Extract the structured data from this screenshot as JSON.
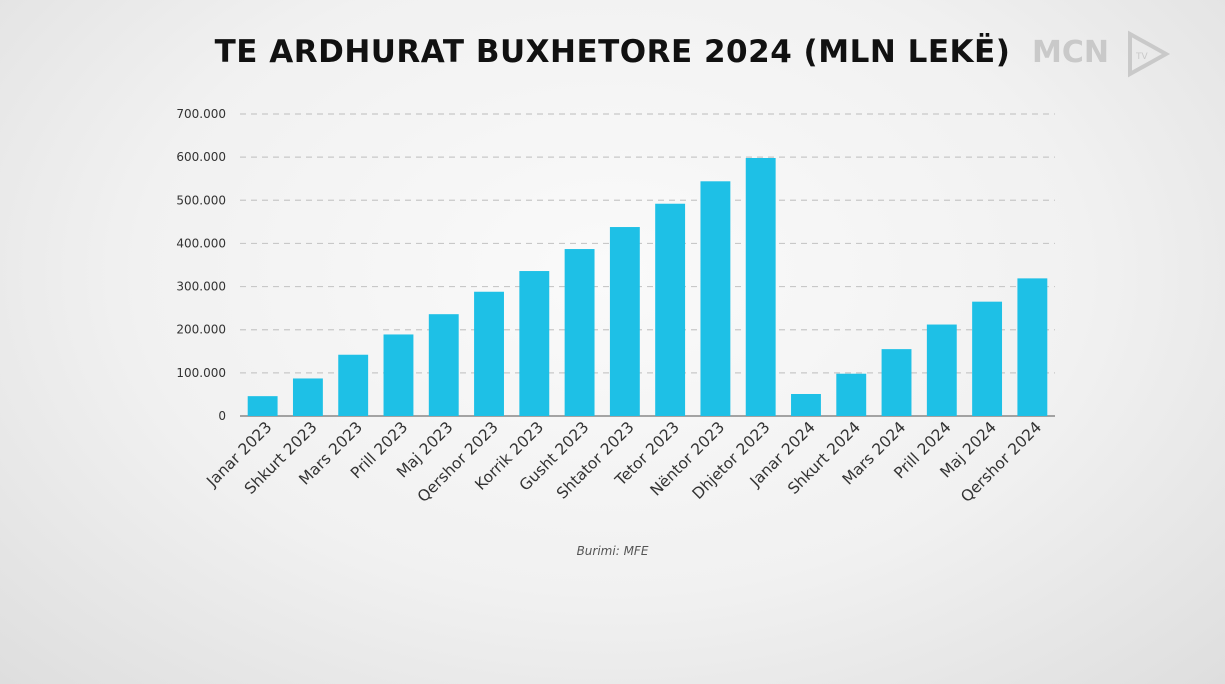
{
  "title": "TE ARDHURAT BUXHETORE 2024 (MLN LEKË)",
  "source": "Burimi: MFE",
  "logo": {
    "text": "MCN",
    "sub": "TV"
  },
  "colors": {
    "bar": "#1ec0e6",
    "grid": "#c8c8c8",
    "axis": "#888888"
  },
  "chart_data": {
    "type": "bar",
    "title": "TE ARDHURAT BUXHETORE 2024 (MLN LEKË)",
    "xlabel": "",
    "ylabel": "",
    "ylim": [
      0,
      700000
    ],
    "yticks": [
      0,
      100000,
      200000,
      300000,
      400000,
      500000,
      600000,
      700000
    ],
    "ytick_labels": [
      "0",
      "100.000",
      "200.000",
      "300.000",
      "400.000",
      "500.000",
      "600.000",
      "700.000"
    ],
    "grid": "horizontal dashed",
    "categories": [
      "Janar 2023",
      "Shkurt 2023",
      "Mars 2023",
      "Prill 2023",
      "Maj 2023",
      "Qershor 2023",
      "Korrik 2023",
      "Gusht 2023",
      "Shtator 2023",
      "Tetor 2023",
      "Nëntor 2023",
      "Dhjetor 2023",
      "Janar 2024",
      "Shkurt 2024",
      "Mars 2024",
      "Prill 2024",
      "Maj 2024",
      "Qershor 2024"
    ],
    "values": [
      46000,
      87000,
      142000,
      189000,
      236000,
      288000,
      336000,
      387000,
      438000,
      492000,
      544000,
      598000,
      51000,
      98000,
      155000,
      212000,
      265000,
      319000
    ]
  }
}
